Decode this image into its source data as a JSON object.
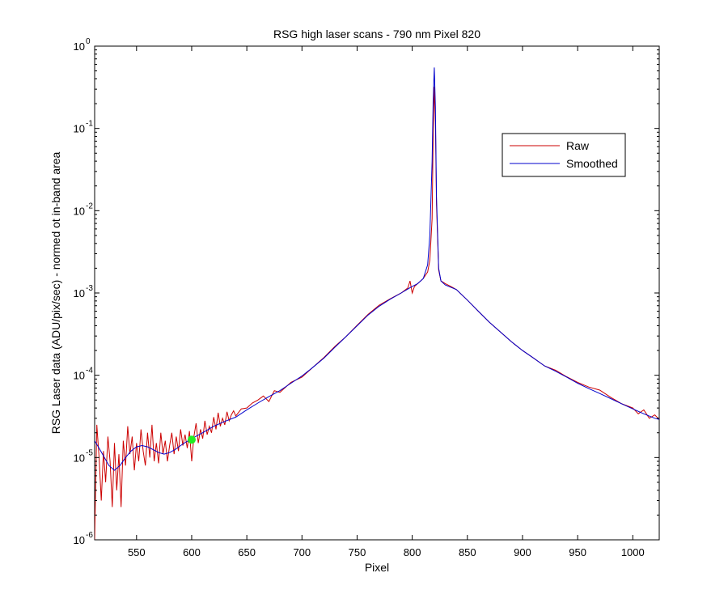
{
  "chart_data": {
    "type": "line",
    "title": "RSG high laser scans  - 790 nm    Pixel 820",
    "xlabel": "Pixel",
    "ylabel": "RSG Laser data (ADU/pix/sec) - normed ot in-band area",
    "xlim": [
      512,
      1024
    ],
    "ylim": [
      1e-06,
      1
    ],
    "yscale": "log",
    "grid": false,
    "legend_position": "top-right",
    "x_ticks": [
      {
        "value": 550,
        "label": "550"
      },
      {
        "value": 600,
        "label": "600"
      },
      {
        "value": 650,
        "label": "650"
      },
      {
        "value": 700,
        "label": "700"
      },
      {
        "value": 750,
        "label": "750"
      },
      {
        "value": 800,
        "label": "800"
      },
      {
        "value": 850,
        "label": "850"
      },
      {
        "value": 900,
        "label": "900"
      },
      {
        "value": 950,
        "label": "950"
      },
      {
        "value": 1000,
        "label": "1000"
      }
    ],
    "y_ticks": [
      {
        "value": 1e-06,
        "base": "10",
        "exp": "-6"
      },
      {
        "value": 1e-05,
        "base": "10",
        "exp": "-5"
      },
      {
        "value": 0.0001,
        "base": "10",
        "exp": "-4"
      },
      {
        "value": 0.001,
        "base": "10",
        "exp": "-3"
      },
      {
        "value": 0.01,
        "base": "10",
        "exp": "-2"
      },
      {
        "value": 0.1,
        "base": "10",
        "exp": "-1"
      },
      {
        "value": 1,
        "base": "10",
        "exp": "0"
      }
    ],
    "series": [
      {
        "name": "Raw",
        "color": "#cc0000",
        "x": [
          512,
          514,
          516,
          518,
          520,
          522,
          524,
          526,
          528,
          530,
          532,
          534,
          536,
          538,
          540,
          542,
          544,
          546,
          548,
          550,
          552,
          554,
          556,
          558,
          560,
          562,
          564,
          566,
          568,
          570,
          572,
          574,
          576,
          578,
          580,
          582,
          584,
          586,
          588,
          590,
          592,
          594,
          596,
          598,
          600,
          602,
          604,
          606,
          608,
          610,
          612,
          614,
          616,
          618,
          620,
          622,
          624,
          626,
          628,
          630,
          632,
          634,
          636,
          638,
          640,
          645,
          650,
          655,
          660,
          665,
          670,
          675,
          680,
          690,
          700,
          710,
          720,
          730,
          740,
          750,
          760,
          770,
          780,
          790,
          796,
          798,
          800,
          802,
          805,
          810,
          814,
          816,
          818,
          819,
          820,
          821,
          822,
          824,
          826,
          830,
          835,
          840,
          850,
          860,
          870,
          880,
          890,
          900,
          910,
          920,
          930,
          940,
          950,
          960,
          970,
          980,
          990,
          1000,
          1005,
          1010,
          1015,
          1020,
          1024
        ],
        "y": [
          1e-06,
          2.5e-05,
          1e-05,
          3e-06,
          1.2e-05,
          5e-06,
          1.8e-05,
          9e-06,
          2.5e-06,
          1.5e-05,
          4e-06,
          1.1e-05,
          2.5e-06,
          1.6e-05,
          8e-06,
          2.4e-05,
          1.1e-05,
          1.8e-05,
          7e-06,
          1.5e-05,
          9e-06,
          2.2e-05,
          1.2e-05,
          8e-06,
          2e-05,
          1e-05,
          2.5e-05,
          9e-06,
          1.5e-05,
          8.5e-06,
          2e-05,
          1.1e-05,
          1.6e-05,
          9e-06,
          1.4e-05,
          2e-05,
          1.1e-05,
          1.8e-05,
          1.2e-05,
          2.2e-05,
          1.4e-05,
          1.9e-05,
          1.3e-05,
          2.1e-05,
          9e-06,
          1.8e-05,
          2.6e-05,
          1.5e-05,
          2.2e-05,
          1.7e-05,
          2.8e-05,
          1.9e-05,
          2.4e-05,
          2e-05,
          3.1e-05,
          2.2e-05,
          3.5e-05,
          2.4e-05,
          3e-05,
          2.5e-05,
          3.6e-05,
          2.8e-05,
          3.3e-05,
          3.7e-05,
          3.2e-05,
          3.9e-05,
          4e-05,
          4.6e-05,
          5e-05,
          5.6e-05,
          4.8e-05,
          6.5e-05,
          6.2e-05,
          8.2e-05,
          9.5e-05,
          0.000125,
          0.000165,
          0.000225,
          0.000295,
          0.000405,
          0.00055,
          0.00071,
          0.00085,
          0.001,
          0.00115,
          0.0014,
          0.001,
          0.0012,
          0.0013,
          0.0015,
          0.0018,
          0.0025,
          0.008,
          0.08,
          0.32,
          0.12,
          0.012,
          0.0019,
          0.0014,
          0.0013,
          0.0012,
          0.0011,
          0.00082,
          0.0006,
          0.00044,
          0.000335,
          0.000255,
          0.0002,
          0.000162,
          0.00013,
          0.000115,
          9.6e-05,
          8.2e-05,
          7.2e-05,
          6.6e-05,
          5.4e-05,
          4.5e-05,
          4e-05,
          3.4e-05,
          3.8e-05,
          3e-05,
          3.3e-05,
          2.9e-05
        ]
      },
      {
        "name": "Smoothed",
        "color": "#0000cc",
        "x": [
          512,
          516,
          520,
          525,
          530,
          535,
          540,
          545,
          550,
          555,
          560,
          565,
          570,
          575,
          580,
          585,
          590,
          595,
          600,
          610,
          620,
          630,
          640,
          650,
          660,
          670,
          680,
          690,
          700,
          710,
          720,
          730,
          740,
          750,
          760,
          770,
          780,
          790,
          800,
          805,
          810,
          814,
          816,
          818,
          819,
          820,
          821,
          822,
          824,
          826,
          830,
          840,
          850,
          860,
          870,
          880,
          890,
          900,
          910,
          920,
          930,
          940,
          950,
          960,
          970,
          980,
          990,
          1000,
          1010,
          1020,
          1024
        ],
        "y": [
          1.6e-05,
          1.3e-05,
          1.05e-05,
          8e-06,
          7e-06,
          8e-06,
          1e-05,
          1.2e-05,
          1.35e-05,
          1.4e-05,
          1.35e-05,
          1.25e-05,
          1.15e-05,
          1.1e-05,
          1.15e-05,
          1.25e-05,
          1.4e-05,
          1.55e-05,
          1.7e-05,
          2e-05,
          2.4e-05,
          2.75e-05,
          3.1e-05,
          3.8e-05,
          4.6e-05,
          5.5e-05,
          6.5e-05,
          8e-05,
          9.8e-05,
          0.000125,
          0.000162,
          0.00022,
          0.000295,
          0.0004,
          0.00054,
          0.00069,
          0.00084,
          0.001,
          0.0012,
          0.0013,
          0.0015,
          0.0022,
          0.005,
          0.04,
          0.22,
          0.55,
          0.18,
          0.015,
          0.002,
          0.0014,
          0.00125,
          0.0011,
          0.00082,
          0.0006,
          0.00044,
          0.000335,
          0.000255,
          0.0002,
          0.000162,
          0.00013,
          0.000112,
          9.5e-05,
          8e-05,
          6.9e-05,
          6e-05,
          5.2e-05,
          4.5e-05,
          3.9e-05,
          3.4e-05,
          3e-05,
          2.9e-05
        ]
      }
    ],
    "markers": [
      {
        "x": 600,
        "y": 1.65e-05,
        "color": "#22ee22"
      }
    ]
  }
}
